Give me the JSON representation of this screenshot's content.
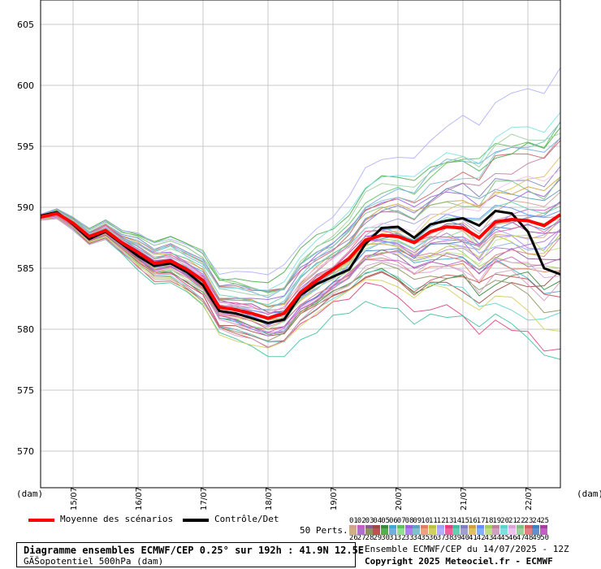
{
  "chart_data": {
    "type": "line",
    "ylabel": "(dam)",
    "xlabel": "(dam)",
    "ylim": [
      567,
      607
    ],
    "y_ticks": [
      570,
      575,
      580,
      585,
      590,
      595,
      600,
      605
    ],
    "x_tick_labels": [
      "15/07",
      "16/07",
      "17/07",
      "18/07",
      "19/07",
      "20/07",
      "21/07",
      "22/07"
    ],
    "grid": true,
    "mean": {
      "name": "Moyenne des scénarios",
      "color": "#ff0000",
      "values": [
        589.2,
        589.5,
        588.7,
        587.6,
        588.1,
        587.1,
        586.3,
        585.4,
        585.6,
        584.9,
        584.0,
        581.8,
        581.6,
        581.3,
        580.9,
        581.3,
        583.0,
        584.0,
        584.9,
        585.8,
        587.3,
        587.7,
        587.6,
        587.1,
        588.0,
        588.4,
        588.3,
        587.5,
        588.8,
        589.0,
        588.9,
        588.5,
        589.4
      ]
    },
    "control": {
      "name": "Contrôle/Det",
      "color": "#000000",
      "values": [
        589.3,
        589.6,
        588.6,
        587.4,
        588.0,
        587.0,
        586.0,
        585.2,
        585.4,
        584.7,
        583.6,
        581.5,
        581.3,
        580.9,
        580.5,
        580.8,
        582.8,
        583.7,
        584.3,
        584.9,
        587.0,
        588.3,
        588.4,
        587.5,
        588.6,
        588.9,
        589.1,
        588.5,
        589.7,
        589.5,
        588.0,
        585.0,
        584.5
      ]
    },
    "perturbations_label": "50 Perts.",
    "perturbation_ids": [
      "01",
      "02",
      "03",
      "04",
      "05",
      "06",
      "07",
      "08",
      "09",
      "10",
      "11",
      "12",
      "13",
      "14",
      "15",
      "16",
      "17",
      "18",
      "19",
      "20",
      "21",
      "22",
      "23",
      "24",
      "25",
      "26",
      "27",
      "28",
      "29",
      "30",
      "31",
      "32",
      "33",
      "34",
      "35",
      "36",
      "37",
      "38",
      "39",
      "40",
      "41",
      "42",
      "43",
      "44",
      "45",
      "46",
      "47",
      "48",
      "49",
      "50"
    ],
    "perturbation_colors": [
      "#d4a090",
      "#c060c0",
      "#8c5a9a",
      "#9c4a40",
      "#3a8a3a",
      "#40a8d0",
      "#60c060",
      "#a060e0",
      "#60a0c0",
      "#e08060",
      "#c0c040",
      "#a0a0ff",
      "#e04080",
      "#40c0a0",
      "#8080c0",
      "#d0a040",
      "#6090ff",
      "#a0d060",
      "#c080a0",
      "#60d0d0",
      "#e0a0e0",
      "#80c080",
      "#d06060",
      "#4080c0",
      "#a040a0",
      "#d0b080",
      "#b070d0",
      "#909060",
      "#c05050",
      "#50b050",
      "#70b0e0",
      "#90e090",
      "#b080f0",
      "#80c0d0",
      "#f0a080",
      "#d0d060",
      "#b0b0ff",
      "#f060a0",
      "#60d0b0",
      "#a0a0d0",
      "#e0c060",
      "#80b0ff",
      "#c0e080",
      "#d0a0c0",
      "#80e0e0",
      "#f0c0f0",
      "#a0d0a0",
      "#e08080",
      "#6090d0",
      "#c060c0"
    ]
  },
  "legend": {
    "mean_label": "Moyenne des scénarios",
    "control_label": "Contrôle/Det",
    "perts_label": "50 Perts."
  },
  "footer": {
    "title_line1": "Diagramme ensembles ECMWF/CEP 0.25° sur 192h : 41.9N 12.5E",
    "title_line2": "GÃŠopotentiel 500hPa (dam)",
    "run_info": "Ensemble ECMWF/CEP du 14/07/2025 - 12Z",
    "copyright": "Copyright 2025 Meteociel.fr - ECMWF"
  }
}
